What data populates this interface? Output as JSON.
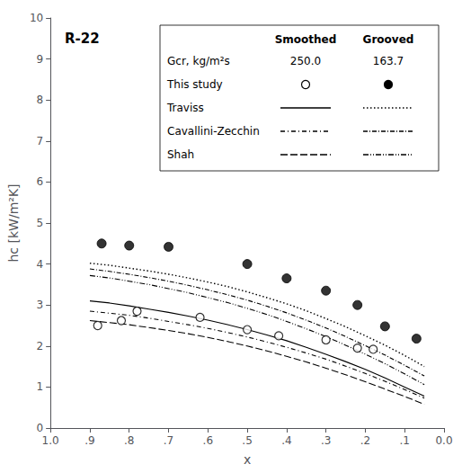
{
  "chart_data": {
    "type": "line",
    "title": "R-22",
    "xlabel": "x",
    "ylabel": "hc [kW/m²K]",
    "xlim": [
      1.0,
      0.0
    ],
    "ylim": [
      0,
      10
    ],
    "xticks": [
      {
        "value": 1.0,
        "label": "1.0"
      },
      {
        "value": 0.9,
        "label": ".9"
      },
      {
        "value": 0.8,
        "label": ".8"
      },
      {
        "value": 0.7,
        "label": ".7"
      },
      {
        "value": 0.6,
        "label": ".6"
      },
      {
        "value": 0.5,
        "label": ".5"
      },
      {
        "value": 0.4,
        "label": ".4"
      },
      {
        "value": 0.3,
        "label": ".3"
      },
      {
        "value": 0.2,
        "label": ".2"
      },
      {
        "value": 0.1,
        "label": ".1"
      },
      {
        "value": 0.0,
        "label": "0.0"
      }
    ],
    "yticks": [
      0,
      1,
      2,
      3,
      4,
      5,
      6,
      7,
      8,
      9,
      10
    ],
    "grid": false,
    "legend": "upper right",
    "legend_columns": [
      "Smoothed",
      "Grooved"
    ],
    "legend_rows": [
      {
        "label": "Gcr, kg/m²s",
        "values": [
          {
            "value": 250.0,
            "label": "250.0"
          },
          {
            "value": 163.7,
            "label": "163.7"
          }
        ]
      }
    ],
    "series": [
      {
        "name": "Traviss",
        "group": "Smoothed",
        "type": "line",
        "line_style": "solid",
        "color": "#000000",
        "x": [
          0.9,
          0.85,
          0.8,
          0.75,
          0.7,
          0.65,
          0.6,
          0.55,
          0.5,
          0.45,
          0.4,
          0.35,
          0.3,
          0.25,
          0.2,
          0.15,
          0.1,
          0.05
        ],
        "values": [
          3.1,
          3.05,
          2.98,
          2.9,
          2.82,
          2.73,
          2.63,
          2.52,
          2.4,
          2.27,
          2.13,
          1.97,
          1.8,
          1.62,
          1.43,
          1.22,
          1.0,
          0.78
        ]
      },
      {
        "name": "Cavallini-Zecchin",
        "group": "Smoothed",
        "type": "line",
        "line_style": "dashdot",
        "color": "#000000",
        "x": [
          0.9,
          0.85,
          0.8,
          0.75,
          0.7,
          0.65,
          0.6,
          0.55,
          0.5,
          0.45,
          0.4,
          0.35,
          0.3,
          0.25,
          0.2,
          0.15,
          0.1,
          0.05
        ],
        "values": [
          2.85,
          2.8,
          2.75,
          2.68,
          2.6,
          2.52,
          2.43,
          2.33,
          2.22,
          2.1,
          1.97,
          1.83,
          1.68,
          1.51,
          1.33,
          1.14,
          0.94,
          0.73
        ]
      },
      {
        "name": "Shah",
        "group": "Smoothed",
        "type": "line",
        "line_style": "dashed",
        "color": "#000000",
        "x": [
          0.9,
          0.85,
          0.8,
          0.75,
          0.7,
          0.65,
          0.6,
          0.55,
          0.5,
          0.45,
          0.4,
          0.35,
          0.3,
          0.25,
          0.2,
          0.15,
          0.1,
          0.05
        ],
        "values": [
          2.62,
          2.57,
          2.52,
          2.45,
          2.38,
          2.3,
          2.21,
          2.11,
          2.0,
          1.88,
          1.75,
          1.61,
          1.46,
          1.3,
          1.13,
          0.95,
          0.77,
          0.58
        ]
      },
      {
        "name": "Traviss",
        "group": "Grooved",
        "type": "line",
        "line_style": "dotted",
        "color": "#000000",
        "x": [
          0.9,
          0.85,
          0.8,
          0.75,
          0.7,
          0.65,
          0.6,
          0.55,
          0.5,
          0.45,
          0.4,
          0.35,
          0.3,
          0.25,
          0.2,
          0.15,
          0.1,
          0.05
        ],
        "values": [
          4.02,
          3.97,
          3.9,
          3.83,
          3.75,
          3.66,
          3.56,
          3.45,
          3.32,
          3.18,
          3.03,
          2.86,
          2.67,
          2.47,
          2.25,
          2.02,
          1.77,
          1.5
        ]
      },
      {
        "name": "Cavallini-Zecchin",
        "group": "Grooved",
        "type": "line",
        "line_style": "densely_dashdot",
        "color": "#000000",
        "x": [
          0.9,
          0.85,
          0.8,
          0.75,
          0.7,
          0.65,
          0.6,
          0.55,
          0.5,
          0.45,
          0.4,
          0.35,
          0.3,
          0.25,
          0.2,
          0.15,
          0.1,
          0.05
        ],
        "values": [
          3.88,
          3.82,
          3.75,
          3.67,
          3.58,
          3.48,
          3.37,
          3.25,
          3.12,
          2.97,
          2.81,
          2.63,
          2.44,
          2.23,
          2.01,
          1.78,
          1.53,
          1.27
        ]
      },
      {
        "name": "Shah",
        "group": "Grooved",
        "type": "line",
        "line_style": "dashdotdot",
        "color": "#000000",
        "x": [
          0.9,
          0.85,
          0.8,
          0.75,
          0.7,
          0.65,
          0.6,
          0.55,
          0.5,
          0.45,
          0.4,
          0.35,
          0.3,
          0.25,
          0.2,
          0.15,
          0.1,
          0.05
        ],
        "values": [
          3.72,
          3.66,
          3.58,
          3.5,
          3.4,
          3.3,
          3.18,
          3.06,
          2.92,
          2.77,
          2.6,
          2.42,
          2.23,
          2.02,
          1.8,
          1.57,
          1.32,
          1.06
        ]
      },
      {
        "name": "This study",
        "group": "Smoothed",
        "type": "scatter",
        "marker": "open_circle",
        "color": "#000000",
        "x": [
          0.88,
          0.82,
          0.78,
          0.62,
          0.5,
          0.42,
          0.3,
          0.22,
          0.18
        ],
        "values": [
          2.5,
          2.62,
          2.85,
          2.7,
          2.4,
          2.25,
          2.15,
          1.95,
          1.92
        ]
      },
      {
        "name": "This study",
        "group": "Grooved",
        "type": "scatter",
        "marker": "circle",
        "color": "#000000",
        "x": [
          0.87,
          0.8,
          0.7,
          0.5,
          0.4,
          0.3,
          0.22,
          0.15,
          0.07
        ],
        "values": [
          4.5,
          4.45,
          4.42,
          4.0,
          3.65,
          3.35,
          3.0,
          2.48,
          2.18
        ]
      }
    ]
  }
}
